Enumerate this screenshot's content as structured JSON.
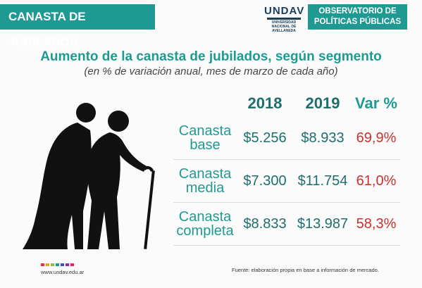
{
  "header": {
    "left_title": "CANASTA DE JUBILADOS",
    "logo": {
      "word": "UNDAV",
      "line1": "UNIVERSIDAD",
      "line2": "NACIONAL DE",
      "line3": "AVELLANEDA"
    },
    "right_line1": "OBSERVATORIO DE",
    "right_line2": "POLÍTICAS PÚBLICAS"
  },
  "title": "Aumento de la canasta de jubilados, según segmento",
  "subtitle": "(en % de variación anual, mes de marzo de cada año)",
  "table": {
    "headers": [
      "2018",
      "2019",
      "Var %"
    ],
    "rows": [
      {
        "line1": "Canasta",
        "line2": "base",
        "v2018": "$5.256",
        "v2019": "$8.933",
        "var": "69,9%"
      },
      {
        "line1": "Canasta",
        "line2": "media",
        "v2018": "$7.300",
        "v2019": "$11.754",
        "var": "61,0%"
      },
      {
        "line1": "Canasta",
        "line2": "completa",
        "v2018": "$8.833",
        "v2019": "$13.987",
        "var": "58,3%"
      }
    ]
  },
  "footer": {
    "url": "www.undav.edu.ar",
    "source": "Fuente: elaboración propia en base a información de mercado.",
    "dot_colors": [
      "#e53935",
      "#f39c12",
      "#8bc34a",
      "#1f9a93",
      "#3f51b5",
      "#9c27b0",
      "#e91e63"
    ]
  },
  "colors": {
    "accent": "#1f9a93",
    "dark_teal": "#1f6e6b",
    "negative_red": "#c8312d",
    "logo_blue": "#1b3d5c"
  },
  "icons": [
    "elderly-couple-icon"
  ]
}
